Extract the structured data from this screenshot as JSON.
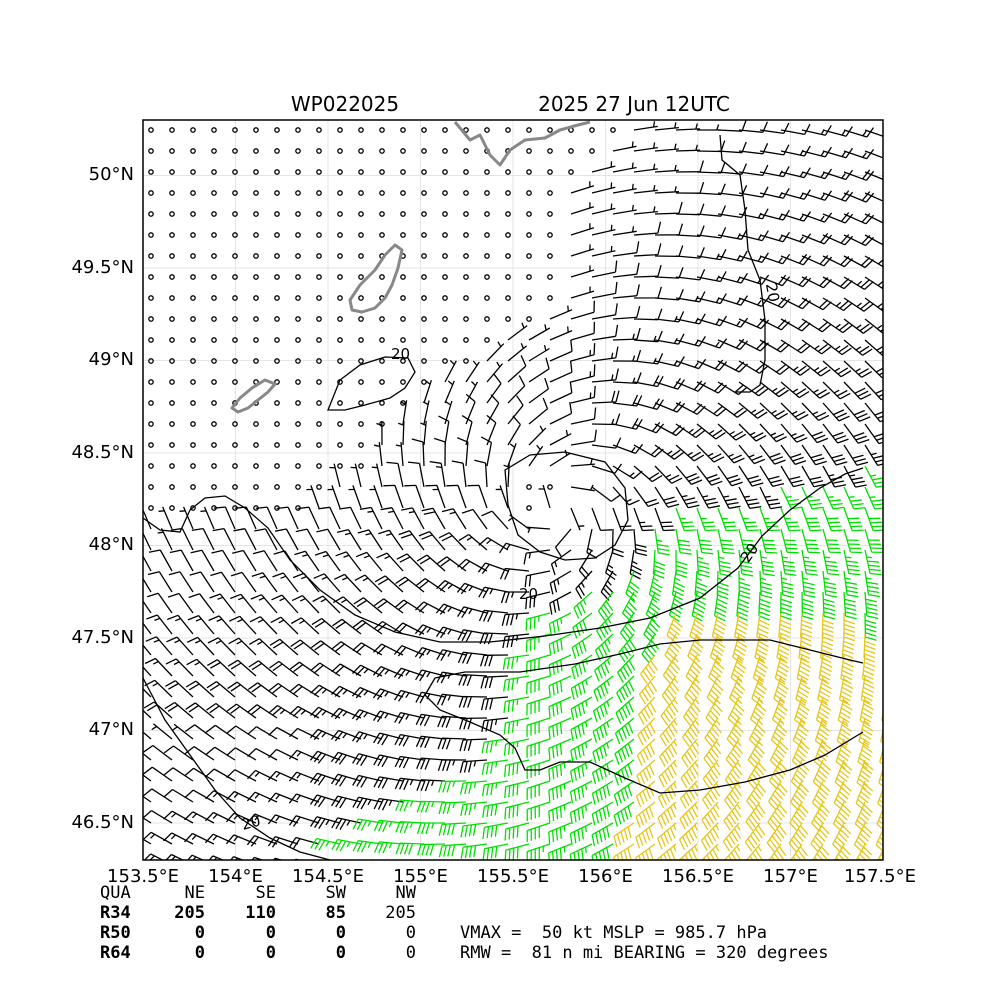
{
  "header": {
    "storm_id": "WP022025",
    "valid_time": "2025 27 Jun 12UTC"
  },
  "map": {
    "lon_range": [
      153.5,
      157.5
    ],
    "lat_range": [
      46.3,
      50.3
    ],
    "lon_ticks": [
      "153.5°E",
      "154°E",
      "154.5°E",
      "155°E",
      "155.5°E",
      "156°E",
      "156.5°E",
      "157°E",
      "157.5°E"
    ],
    "lat_ticks": [
      "46.5°N",
      "47°N",
      "47.5°N",
      "48°N",
      "48.5°N",
      "49°N",
      "49.5°N",
      "50°N"
    ],
    "contour_labels": [
      "20",
      "20",
      "20",
      "20",
      "20"
    ],
    "center": {
      "lon": 155.75,
      "lat": 48.2
    },
    "wind_colors": {
      "below_34kt": "#000000",
      "34_to_50kt": "#00e000",
      "50_to_64kt": "#e6c619"
    },
    "coastline_color": "#888888",
    "grid": true
  },
  "radii_table": {
    "headers": [
      "QUA",
      "NE",
      "SE",
      "SW",
      "NW"
    ],
    "rows": [
      [
        "R34",
        "205",
        "110",
        "85",
        "205"
      ],
      [
        "R50",
        "0",
        "0",
        "0",
        "0"
      ],
      [
        "R64",
        "0",
        "0",
        "0",
        "0"
      ]
    ]
  },
  "summary": {
    "line1": "VMAX =  50 kt MSLP = 985.7 hPa",
    "line2": "RMW =  81 n mi BEARING = 320 degrees"
  }
}
